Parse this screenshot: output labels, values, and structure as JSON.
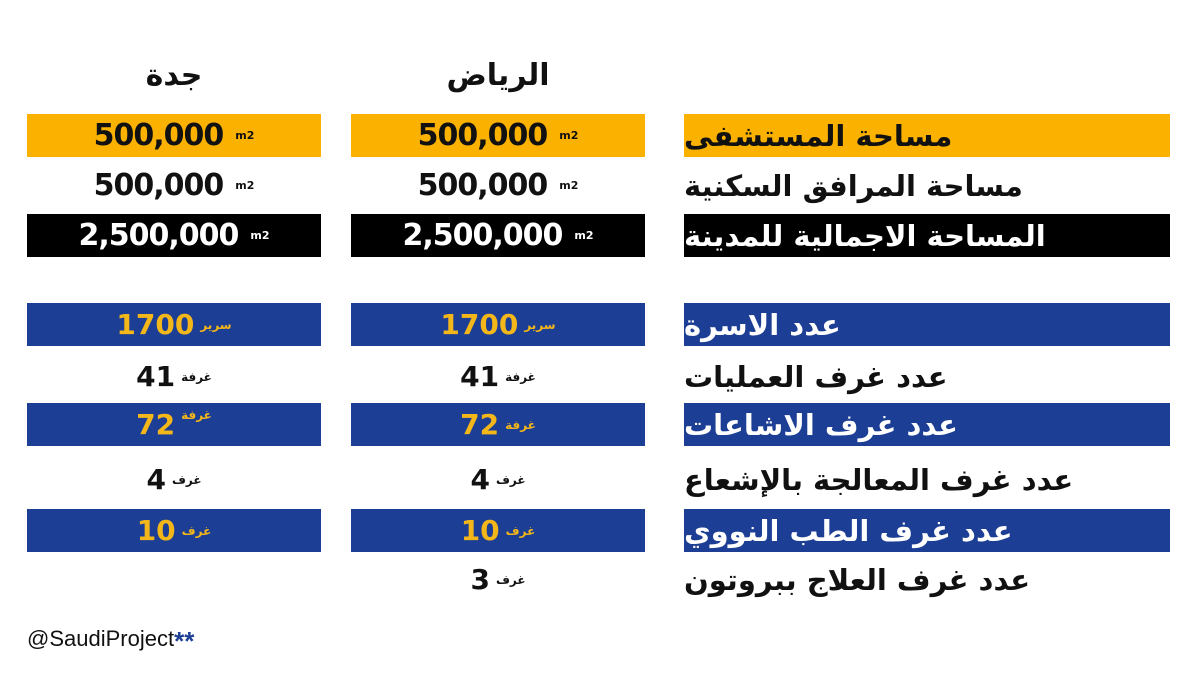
{
  "headers": {
    "riyadh": "الرياض",
    "jeddah": "جدة"
  },
  "area_unit": "m2",
  "area_rows": [
    {
      "label": "مساحة المستشفى",
      "riyadh": "500,000",
      "jeddah": "500,000"
    },
    {
      "label": "مساحة المرافق السكنية",
      "riyadh": "500,000",
      "jeddah": "500,000"
    },
    {
      "label": "المساحة الاجمالية للمدينة",
      "riyadh": "2,500,000",
      "jeddah": "2,500,000"
    }
  ],
  "count_rows": [
    {
      "label": "عدد الاسرة",
      "unit": "سرير",
      "riyadh": "1700",
      "jeddah": "1700"
    },
    {
      "label": "عدد غرف العمليات",
      "unit": "غرفة",
      "riyadh": "41",
      "jeddah": "41"
    },
    {
      "label": "عدد غرف الاشاعات",
      "unit": "غرفة",
      "riyadh": "72",
      "jeddah": "72"
    },
    {
      "label": "عدد غرف المعالجة بالإشعاع",
      "unit": "غرف",
      "riyadh": "4",
      "jeddah": "4"
    },
    {
      "label": "عدد غرف الطب النووي",
      "unit": "غرف",
      "riyadh": "10",
      "jeddah": "10"
    },
    {
      "label": "عدد غرف العلاج ببروتون",
      "unit": "غرف",
      "riyadh": "3",
      "jeddah": ""
    }
  ],
  "footer": {
    "handle": "@SaudiProject",
    "stars": "**"
  },
  "colors": {
    "yellow": "#fbb100",
    "black": "#000000",
    "blue": "#1c3e94",
    "gold_text": "#f4b71a"
  }
}
